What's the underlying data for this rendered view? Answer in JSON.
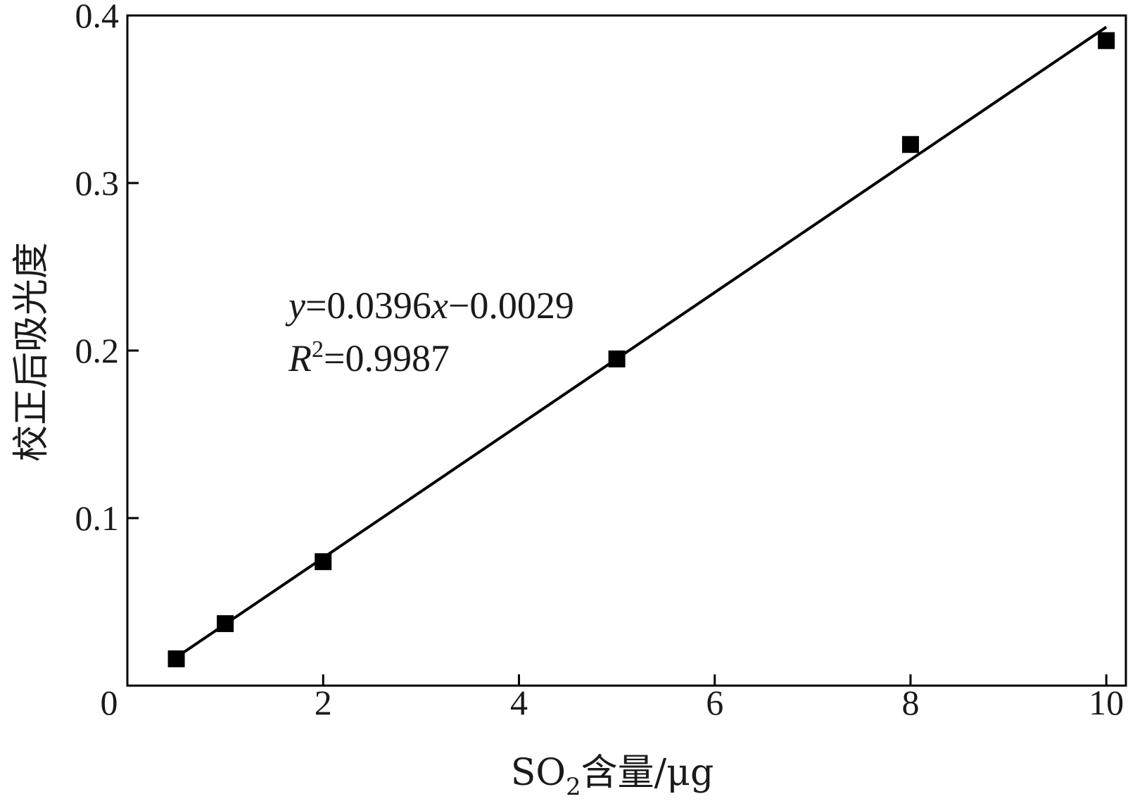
{
  "chart_data": {
    "type": "scatter",
    "title": "",
    "xlabel": {
      "prefix": "SO",
      "subscript": "2",
      "suffix": "含量/μg"
    },
    "ylabel": "校正后吸光度",
    "xlim": [
      0,
      10.2
    ],
    "ylim": [
      0,
      0.4
    ],
    "x_ticks": [
      2,
      4,
      6,
      8,
      10
    ],
    "x_tick_labels": [
      "2",
      "4",
      "6",
      "8",
      "10"
    ],
    "y_ticks": [
      0.1,
      0.2,
      0.3,
      0.4
    ],
    "y_tick_labels": [
      "0.1",
      "0.2",
      "0.3",
      "0.4"
    ],
    "origin_label": "0",
    "grid": false,
    "marker": "square",
    "color": "#000000",
    "points": [
      {
        "x": 0.5,
        "y": 0.016
      },
      {
        "x": 1.0,
        "y": 0.037
      },
      {
        "x": 2.0,
        "y": 0.074
      },
      {
        "x": 5.0,
        "y": 0.195
      },
      {
        "x": 8.0,
        "y": 0.323
      },
      {
        "x": 10.0,
        "y": 0.385
      }
    ],
    "fit": {
      "slope": 0.0396,
      "intercept": -0.0029,
      "x_range": [
        0.5,
        10.0
      ]
    },
    "annotation": {
      "equation": {
        "y": "y",
        "eq": "=0.0396",
        "x": "x",
        "rest": "−0.0029"
      },
      "r2": {
        "r": "R",
        "sup": "2",
        "rest": "=0.9987"
      }
    }
  }
}
